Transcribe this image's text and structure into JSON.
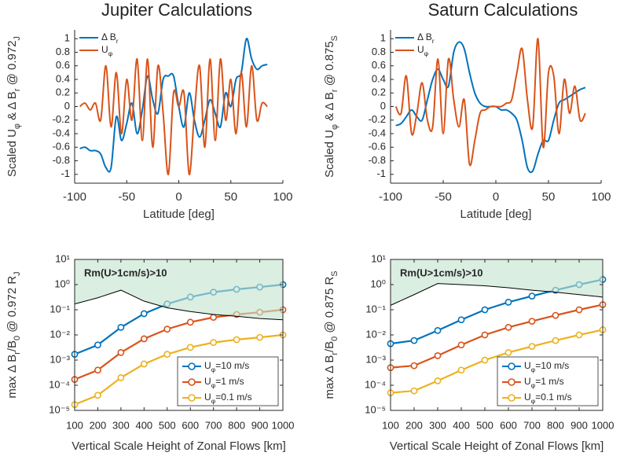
{
  "chart_data": [
    {
      "type": "line",
      "title": "Jupiter Calculations",
      "xlabel": "Latitude [deg]",
      "ylabel": [
        "Scaled U",
        "φ",
        " & Δ B",
        "r",
        " @ 0.972",
        "J"
      ],
      "x": [
        -95,
        -90,
        -85,
        -80,
        -75,
        -70,
        -65,
        -60,
        -55,
        -50,
        -45,
        -40,
        -35,
        -30,
        -25,
        -20,
        -15,
        -10,
        -5,
        0,
        5,
        10,
        15,
        20,
        25,
        30,
        35,
        40,
        45,
        50,
        55,
        60,
        65,
        70,
        75,
        80,
        85
      ],
      "series": [
        {
          "name": [
            "Δ B",
            "r"
          ],
          "color": "#0072bd",
          "values": [
            -0.62,
            -0.6,
            -0.65,
            -0.65,
            -0.7,
            -0.9,
            -0.9,
            -0.15,
            -0.5,
            -0.25,
            0.05,
            -0.4,
            -0.05,
            0.45,
            0.1,
            -0.1,
            0.4,
            0.45,
            0.45,
            0,
            -0.3,
            0.2,
            -0.2,
            -0.45,
            -0.2,
            0.1,
            -0.1,
            -0.3,
            0.2,
            0,
            0.4,
            0.5,
            1.0,
            0.7,
            0.55,
            0.6,
            0.62
          ]
        },
        {
          "name": [
            "U",
            "φ"
          ],
          "color": "#d95319",
          "values": [
            0,
            0.05,
            -0.05,
            0.05,
            -0.2,
            0.6,
            -0.3,
            0.5,
            -0.4,
            0.4,
            -0.2,
            0.7,
            -0.5,
            0.7,
            -0.6,
            0.6,
            -0.1,
            -1.0,
            0.2,
            0,
            0.2,
            -1.0,
            -0.1,
            0.6,
            -0.6,
            0.7,
            -0.5,
            0.7,
            -0.2,
            0.4,
            -0.4,
            0.5,
            -0.3,
            0.6,
            -0.2,
            0.05,
            0
          ]
        }
      ],
      "xlim": [
        -100,
        100
      ],
      "xticks": [
        -100,
        -50,
        0,
        50,
        100
      ],
      "ylim": [
        -1.13,
        1.13
      ],
      "yticks": [
        -1,
        -0.8,
        -0.6,
        -0.4,
        -0.2,
        0,
        0.2,
        0.4,
        0.6,
        0.8,
        1
      ]
    },
    {
      "type": "line",
      "title": "Saturn Calculations",
      "xlabel": "Latitude [deg]",
      "ylabel": [
        "Scaled U",
        "φ",
        " & Δ B",
        "r",
        " @ 0.875",
        "S"
      ],
      "x": [
        -95,
        -90,
        -85,
        -80,
        -75,
        -70,
        -65,
        -60,
        -55,
        -50,
        -45,
        -40,
        -35,
        -30,
        -25,
        -20,
        -15,
        -10,
        -5,
        0,
        5,
        10,
        15,
        20,
        25,
        30,
        35,
        40,
        45,
        50,
        55,
        60,
        65,
        70,
        75,
        80,
        85
      ],
      "series": [
        {
          "name": [
            "Δ B",
            "r"
          ],
          "color": "#0072bd",
          "values": [
            -0.28,
            -0.25,
            -0.15,
            -0.05,
            -0.15,
            -0.2,
            0.1,
            0.4,
            0.55,
            0.4,
            0.3,
            0.8,
            0.95,
            0.85,
            0.5,
            0.2,
            0.05,
            0,
            0,
            0,
            -0.05,
            -0.05,
            -0.1,
            -0.2,
            -0.5,
            -0.9,
            -0.95,
            -0.7,
            -0.5,
            -0.5,
            -0.2,
            0.05,
            0.1,
            0.15,
            0.2,
            0.25,
            0.28
          ]
        },
        {
          "name": [
            "U",
            "φ"
          ],
          "color": "#d95319",
          "values": [
            0,
            -0.1,
            0.45,
            -0.4,
            -0.1,
            0.35,
            -0.2,
            -0.3,
            0.7,
            -0.4,
            0.7,
            0.1,
            -0.3,
            0.1,
            -0.85,
            -0.5,
            -0.1,
            -0.05,
            0,
            0,
            0,
            0.05,
            0.1,
            0.5,
            0.85,
            0.1,
            -0.3,
            1.0,
            -0.6,
            0.5,
            0.45,
            -0.4,
            0.4,
            -0.1,
            0.3,
            -0.2,
            -0.1
          ]
        }
      ],
      "xlim": [
        -100,
        100
      ],
      "xticks": [
        -100,
        -50,
        0,
        50,
        100
      ],
      "ylim": [
        -1.13,
        1.13
      ],
      "yticks": [
        -1,
        -0.8,
        -0.6,
        -0.4,
        -0.2,
        0,
        0.2,
        0.4,
        0.6,
        0.8,
        1
      ]
    },
    {
      "type": "log_line",
      "xlabel": "Vertical Scale Height of Zonal Flows [km]",
      "ylabel": [
        "max Δ B",
        "r",
        "/B",
        "0",
        " @ 0.972 R",
        "J"
      ],
      "annotation": "Rm(U>1cm/s)>10",
      "x": [
        100,
        200,
        300,
        400,
        500,
        600,
        700,
        800,
        900,
        1000
      ],
      "series": [
        {
          "name": [
            "U",
            "φ",
            "=10 m/s"
          ],
          "color": "#0072bd",
          "values": [
            0.0017,
            0.004,
            0.02,
            0.07,
            0.17,
            0.32,
            0.5,
            0.65,
            0.8,
            1.0
          ]
        },
        {
          "name": [
            "U",
            "φ",
            "=1 m/s"
          ],
          "color": "#d95319",
          "values": [
            0.00017,
            0.0004,
            0.002,
            0.007,
            0.017,
            0.032,
            0.05,
            0.065,
            0.08,
            0.1
          ]
        },
        {
          "name": [
            "U",
            "φ",
            "=0.1 m/s"
          ],
          "color": "#edb120",
          "values": [
            1.7e-05,
            4e-05,
            0.0002,
            0.0007,
            0.0017,
            0.0032,
            0.005,
            0.0065,
            0.008,
            0.01
          ]
        }
      ],
      "threshold": {
        "color": "#000000",
        "shade_color": "#c4e3cf",
        "values": [
          0.17,
          0.3,
          0.6,
          0.22,
          0.12,
          0.085,
          0.065,
          0.055,
          0.045,
          0.04
        ]
      },
      "log_y": true,
      "xlim": [
        100,
        1000
      ],
      "xticks": [
        100,
        200,
        300,
        400,
        500,
        600,
        700,
        800,
        900,
        1000
      ],
      "ylim": [
        1e-05,
        10
      ],
      "yticks": [
        {
          "value": 1e-05,
          "label": "10⁻⁵"
        },
        {
          "value": 0.0001,
          "label": "10⁻⁴"
        },
        {
          "value": 0.001,
          "label": "10⁻³"
        },
        {
          "value": 0.01,
          "label": "10⁻²"
        },
        {
          "value": 0.1,
          "label": "10⁻¹"
        },
        {
          "value": 1,
          "label": "10⁰"
        },
        {
          "value": 10,
          "label": "10¹"
        }
      ]
    },
    {
      "type": "log_line",
      "xlabel": "Vertical Scale Height of Zonal Flows [km]",
      "ylabel": [
        "max Δ B",
        "r",
        "/B",
        "0",
        " @ 0.875 R",
        "S"
      ],
      "annotation": "Rm(U>1cm/s)>10",
      "x": [
        100,
        200,
        300,
        400,
        500,
        600,
        700,
        800,
        900,
        1000
      ],
      "series": [
        {
          "name": [
            "U",
            "φ",
            "=10 m/s"
          ],
          "color": "#0072bd",
          "values": [
            0.0045,
            0.006,
            0.015,
            0.04,
            0.1,
            0.2,
            0.35,
            0.6,
            1.0,
            1.6
          ]
        },
        {
          "name": [
            "U",
            "φ",
            "=1 m/s"
          ],
          "color": "#d95319",
          "values": [
            0.0005,
            0.0006,
            0.0015,
            0.004,
            0.01,
            0.02,
            0.035,
            0.06,
            0.1,
            0.16
          ]
        },
        {
          "name": [
            "U",
            "φ",
            "=0.1 m/s"
          ],
          "color": "#edb120",
          "values": [
            5e-05,
            6e-05,
            0.00015,
            0.0004,
            0.001,
            0.002,
            0.0035,
            0.006,
            0.01,
            0.016
          ]
        }
      ],
      "threshold": {
        "color": "#000000",
        "shade_color": "#c4e3cf",
        "values": [
          0.15,
          0.4,
          1.1,
          1.0,
          0.9,
          0.75,
          0.6,
          0.5,
          0.4,
          0.32
        ]
      },
      "log_y": true,
      "xlim": [
        100,
        1000
      ],
      "xticks": [
        100,
        200,
        300,
        400,
        500,
        600,
        700,
        800,
        900,
        1000
      ],
      "ylim": [
        1e-05,
        10
      ],
      "yticks": [
        {
          "value": 1e-05,
          "label": "10⁻⁵"
        },
        {
          "value": 0.0001,
          "label": "10⁻⁴"
        },
        {
          "value": 0.001,
          "label": "10⁻³"
        },
        {
          "value": 0.01,
          "label": "10⁻²"
        },
        {
          "value": 0.1,
          "label": "10⁻¹"
        },
        {
          "value": 1,
          "label": "10⁰"
        },
        {
          "value": 10,
          "label": "10¹"
        }
      ]
    }
  ]
}
